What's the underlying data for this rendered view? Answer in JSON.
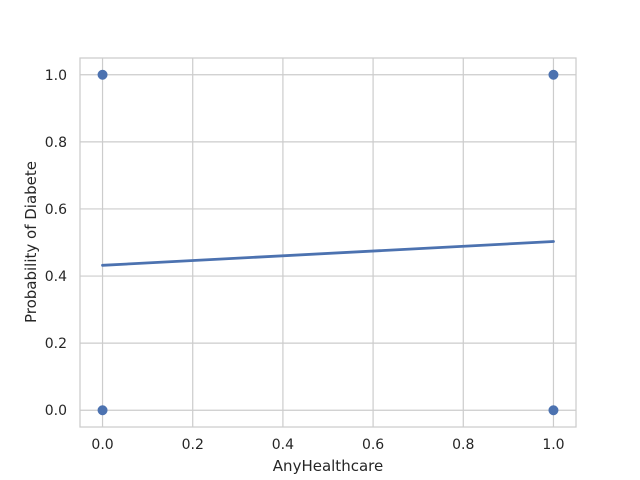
{
  "chart_data": {
    "type": "scatter",
    "title": "",
    "xlabel": "AnyHealthcare",
    "ylabel": "Probability of Diabete",
    "xlim": [
      -0.05,
      1.05
    ],
    "ylim": [
      -0.05,
      1.05
    ],
    "x_ticks": [
      0.0,
      0.2,
      0.4,
      0.6,
      0.8,
      1.0
    ],
    "y_ticks": [
      0.0,
      0.2,
      0.4,
      0.6,
      0.8,
      1.0
    ],
    "x_tick_labels": [
      "0.0",
      "0.2",
      "0.4",
      "0.6",
      "0.8",
      "1.0"
    ],
    "y_tick_labels": [
      "0.0",
      "0.2",
      "0.4",
      "0.6",
      "0.8",
      "1.0"
    ],
    "grid": true,
    "points": [
      {
        "x": 0,
        "y": 1
      },
      {
        "x": 0,
        "y": 0
      },
      {
        "x": 1,
        "y": 1
      },
      {
        "x": 1,
        "y": 0
      }
    ],
    "fit_line": {
      "x": [
        0,
        1
      ],
      "y": [
        0.432,
        0.503
      ]
    },
    "colors": {
      "series": "#4c72b0",
      "grid": "#cccccc",
      "spine": "#cccccc",
      "text": "#262626"
    }
  }
}
